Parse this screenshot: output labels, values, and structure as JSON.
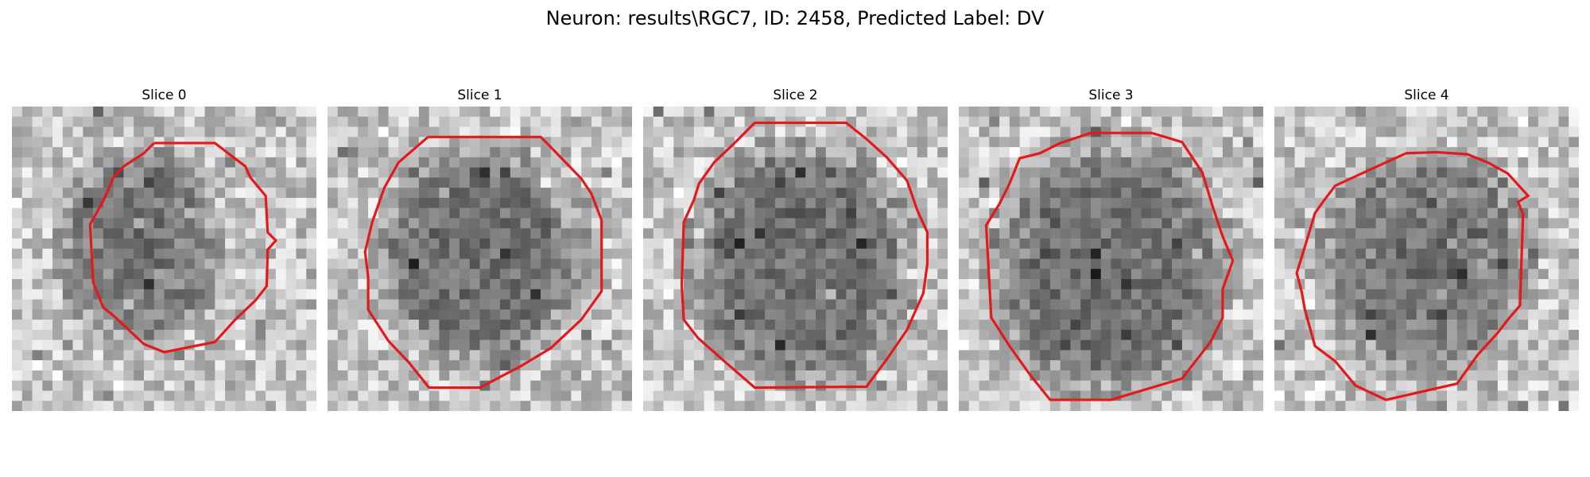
{
  "title": "Neuron: results\\RGC7, ID: 2458, Predicted Label: DV",
  "contour_color": "#e31a1c",
  "slices": [
    {
      "label": "Slice 0"
    },
    {
      "label": "Slice 1"
    },
    {
      "label": "Slice 2"
    },
    {
      "label": "Slice 3"
    },
    {
      "label": "Slice 4"
    }
  ]
}
